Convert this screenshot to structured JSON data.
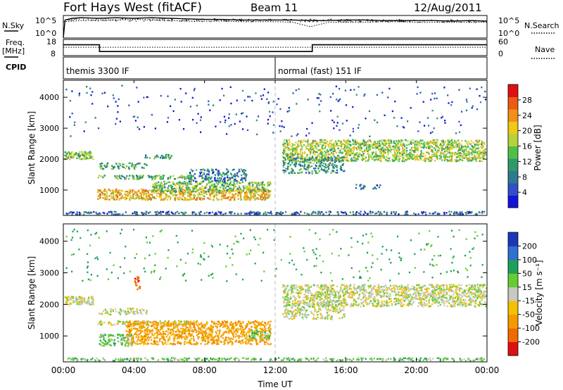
{
  "header": {
    "title": "Fort Hays West (fitACF)",
    "beam": "Beam 11",
    "date": "12/Aug/2011"
  },
  "colors": {
    "velocity_pos_high": "#1b3fb0",
    "velocity_pos": "#2f6fd0",
    "velocity_ground": "#c8c8c0",
    "velocity_neg": "#f4a000",
    "velocity_neg_high": "#e01010",
    "power_low": "#1010c0",
    "power_mid": "#30a060",
    "power_high": "#e02000"
  },
  "chart_data": [
    {
      "type": "line",
      "panel": "noise",
      "left_label": "N.Sky",
      "right_label": "N.Search",
      "left_ticks": [
        "10^5",
        "10^0"
      ],
      "right_ticks": [
        "10^5",
        "10^0"
      ],
      "series": [
        {
          "name": "N.Sky",
          "style": "solid",
          "x": [
            0,
            0.1,
            0.5,
            1,
            2,
            3,
            4,
            5,
            6,
            7,
            8,
            9,
            10,
            11,
            12,
            13,
            14,
            15,
            16,
            17,
            18,
            19,
            20,
            21,
            22,
            23,
            24
          ],
          "y": [
            0.1,
            3.2,
            3.5,
            3.6,
            3.5,
            3.6,
            3.5,
            3.6,
            3.5,
            3.4,
            3.3,
            3.3,
            3.2,
            3.2,
            3.2,
            3.2,
            3.1,
            3.1,
            3.2,
            3.2,
            3.1,
            3.1,
            3.1,
            3.1,
            3.0,
            3.1,
            3.0
          ]
        },
        {
          "name": "N.Search",
          "style": "dotted",
          "x": [
            0,
            1,
            2,
            3,
            4,
            5,
            6,
            7,
            8,
            9,
            10,
            11,
            12,
            13,
            14,
            15,
            16,
            17,
            18,
            19,
            20,
            21,
            22,
            23,
            24
          ],
          "y": [
            2.9,
            3.1,
            3.2,
            3.2,
            3.3,
            3.2,
            3.1,
            3.0,
            3.0,
            3.0,
            2.9,
            2.9,
            2.9,
            2.8,
            2.0,
            2.8,
            2.8,
            2.8,
            2.9,
            2.9,
            2.8,
            2.8,
            2.8,
            2.8,
            2.8
          ]
        }
      ]
    },
    {
      "type": "line",
      "panel": "frequency",
      "left_label": "Freq.",
      "left_unit": "[MHz]",
      "right_label": "Nave",
      "left_ticks": [
        "18",
        "8"
      ],
      "right_ticks": [
        "60",
        "0"
      ],
      "series": [
        {
          "name": "Freq.",
          "style": "solid",
          "x": [
            0,
            2.05,
            2.05,
            14.1,
            14.1,
            24
          ],
          "y": [
            14.6,
            14.6,
            10.2,
            10.2,
            14.6,
            14.6
          ]
        },
        {
          "name": "Nave",
          "style": "dotted",
          "x": [
            0,
            24
          ],
          "y": [
            13,
            13
          ]
        }
      ]
    },
    {
      "type": "annotation",
      "panel": "cpid",
      "label": "CPID",
      "segments": [
        {
          "text": "themis 3300 IF",
          "start_ut": 0
        },
        {
          "text": "normal (fast) 151 IF",
          "start_ut": 12
        }
      ]
    },
    {
      "type": "heatmap",
      "panel": "power",
      "ylabel": "Slant Range [km]",
      "xlim": [
        0,
        24
      ],
      "ylim": [
        180,
        4550
      ],
      "yticks": [
        1000,
        2000,
        3000,
        4000
      ],
      "colorbar": {
        "label": "Power [dB]",
        "ticks": [
          "4",
          "8",
          "12",
          "16",
          "20",
          "24",
          "28"
        ],
        "range": [
          0,
          30
        ],
        "colors": [
          "#1414d8",
          "#3050c8",
          "#2d7a8c",
          "#2e9a6a",
          "#4fbf4a",
          "#b4d23c",
          "#f0c818",
          "#f09018",
          "#ec5a14",
          "#e01010"
        ]
      },
      "regions": [
        {
          "t0": 0.05,
          "t1": 1.75,
          "r0": 1960,
          "r1": 2270,
          "value": 14,
          "density": 0.85
        },
        {
          "t0": 1.9,
          "t1": 7.5,
          "r0": 1320,
          "r1": 1500,
          "value": 12,
          "density": 0.55
        },
        {
          "t0": 2.0,
          "t1": 4.8,
          "r0": 1650,
          "r1": 1900,
          "value": 12,
          "density": 0.5
        },
        {
          "t0": 4.6,
          "t1": 6.2,
          "r0": 1980,
          "r1": 2180,
          "value": 10,
          "density": 0.5
        },
        {
          "t0": 1.9,
          "t1": 11.8,
          "r0": 650,
          "r1": 1050,
          "value": 20,
          "density": 0.8
        },
        {
          "t0": 5.0,
          "t1": 11.8,
          "r0": 900,
          "r1": 1300,
          "value": 14,
          "density": 0.7
        },
        {
          "t0": 7.0,
          "t1": 10.5,
          "r0": 1250,
          "r1": 1700,
          "value": 8,
          "density": 0.55
        },
        {
          "t0": 0.05,
          "t1": 24,
          "r0": 180,
          "r1": 330,
          "value": 6,
          "density": 0.45
        },
        {
          "t0": 12.4,
          "t1": 24,
          "r0": 1900,
          "r1": 2650,
          "value": 16,
          "density": 0.8
        },
        {
          "t0": 12.4,
          "t1": 16.0,
          "r0": 1500,
          "r1": 2100,
          "value": 10,
          "density": 0.55
        },
        {
          "t0": 16.5,
          "t1": 18.0,
          "r0": 1000,
          "r1": 1200,
          "value": 6,
          "density": 0.35
        },
        {
          "t0": 0.1,
          "t1": 24,
          "r0": 2700,
          "r1": 4400,
          "value": 4,
          "density": 0.03
        }
      ]
    },
    {
      "type": "heatmap",
      "panel": "velocity",
      "ylabel": "Slant Range [km]",
      "xlabel": "Time UT",
      "xlim": [
        0,
        24
      ],
      "ylim": [
        180,
        4550
      ],
      "xticks": [
        "00:00",
        "04:00",
        "08:00",
        "12:00",
        "16:00",
        "20:00",
        "00:00"
      ],
      "yticks": [
        1000,
        2000,
        3000,
        4000
      ],
      "colorbar": {
        "label": "Velocity [m s⁻¹]",
        "ticks": [
          "200",
          "100",
          "50",
          "15",
          "-15",
          "-50",
          "-100",
          "-200"
        ],
        "colors": [
          "#1838b8",
          "#2f70d0",
          "#1ea05a",
          "#66cc33",
          "#c8c8c0",
          "#f4c000",
          "#f49a00",
          "#f06a00",
          "#e01010"
        ]
      },
      "regions": [
        {
          "t0": 0.05,
          "t1": 1.75,
          "r0": 1960,
          "r1": 2270,
          "value": 0,
          "density": 0.85
        },
        {
          "t0": 1.9,
          "t1": 7.5,
          "r0": 1320,
          "r1": 1500,
          "value": 0,
          "density": 0.5
        },
        {
          "t0": 2.0,
          "t1": 4.8,
          "r0": 1650,
          "r1": 1900,
          "value": 0,
          "density": 0.5
        },
        {
          "t0": 3.5,
          "t1": 11.8,
          "r0": 700,
          "r1": 1500,
          "value": -70,
          "density": 0.75
        },
        {
          "t0": 2.0,
          "t1": 4.0,
          "r0": 650,
          "r1": 1100,
          "value": 30,
          "density": 0.6
        },
        {
          "t0": 10.5,
          "t1": 11.8,
          "r0": 900,
          "r1": 1200,
          "value": 40,
          "density": 0.6
        },
        {
          "t0": 0.05,
          "t1": 24,
          "r0": 180,
          "r1": 330,
          "value": 35,
          "density": 0.45
        },
        {
          "t0": 4.0,
          "t1": 4.4,
          "r0": 2400,
          "r1": 2900,
          "value": -180,
          "density": 0.55
        },
        {
          "t0": 12.4,
          "t1": 24,
          "r0": 1900,
          "r1": 2650,
          "value": 0,
          "density": 0.75
        },
        {
          "t0": 12.4,
          "t1": 16.0,
          "r0": 1500,
          "r1": 2100,
          "value": 0,
          "density": 0.5
        },
        {
          "t0": 0.1,
          "t1": 24,
          "r0": 2700,
          "r1": 4400,
          "value": 60,
          "density": 0.03
        }
      ]
    }
  ]
}
